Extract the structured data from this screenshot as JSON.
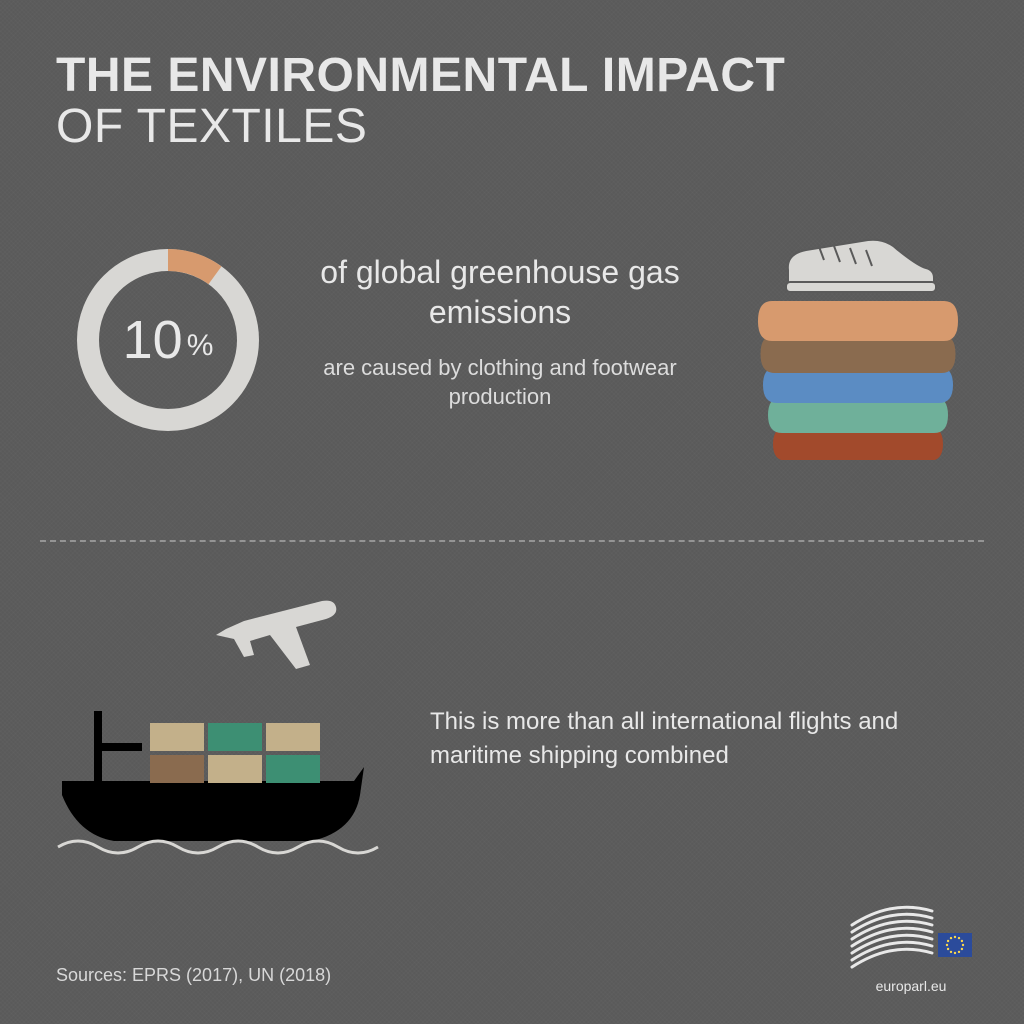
{
  "background_color": "#5a5a5a",
  "title": {
    "line1": "THE ENVIRONMENTAL IMPACT",
    "line2": "OF TEXTILES",
    "color": "#e8e8e8",
    "line1_weight": 600,
    "line2_weight": 300,
    "fontsize": 48
  },
  "stat": {
    "donut": {
      "value_pct": 10,
      "number": "10",
      "percent_sign": "%",
      "ring_color": "#d8d7d4",
      "accent_color": "#d79a6e",
      "ring_width": 22,
      "size": 200
    },
    "heading": "of global greenhouse gas emissions",
    "subheading": "are caused by clothing and footwear production",
    "heading_fontsize": 32,
    "sub_fontsize": 22,
    "text_color": "#e8e8e8"
  },
  "clothes": {
    "shoe_color": "#d8d7d4",
    "shoe_stroke": "#5a5a5a",
    "fold_colors": [
      "#d79a6e",
      "#8a6b4f",
      "#5b8cc3",
      "#6fb09a",
      "#a24a2c"
    ]
  },
  "divider_color": "rgba(255,255,255,0.35)",
  "bottom": {
    "text": "This is more than all international flights and maritime shipping combined",
    "fontsize": 24,
    "text_color": "#e8e8e8",
    "plane_color": "#d8d7d4",
    "ship_hull_color": "#000000",
    "ship_mast_color": "#000000",
    "container_colors": [
      "#c3b08a",
      "#3d8f73",
      "#c3b08a",
      "#8a6b4f",
      "#c3b08a",
      "#3d8f73"
    ],
    "wave_color": "#d8d7d4"
  },
  "footer": {
    "sources": "Sources: EPRS (2017), UN (2018)",
    "logo_caption": "europarl.eu",
    "logo_stroke": "#e8e8e8",
    "flag_bg": "#2b4b9b",
    "flag_star": "#f8d64e"
  }
}
